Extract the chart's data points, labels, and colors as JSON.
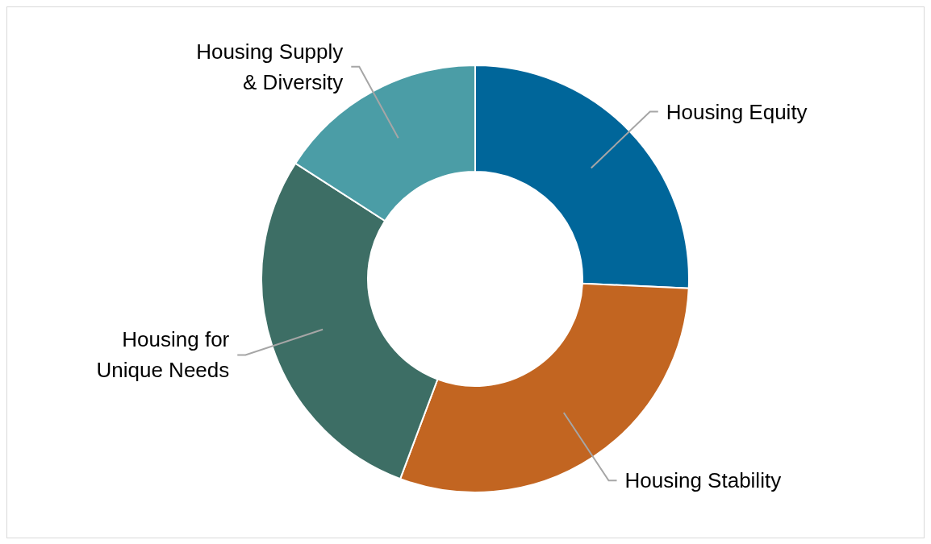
{
  "chart_data": {
    "type": "donut",
    "categories": [
      "Housing Equity",
      "Housing Stability",
      "Housing for Unique Needs",
      "Housing Supply & Diversity"
    ],
    "values": [
      25.7,
      30,
      28.4,
      15.9
    ],
    "colors": [
      "#00669a",
      "#c26521",
      "#3d6e65",
      "#4b9da6"
    ]
  }
}
